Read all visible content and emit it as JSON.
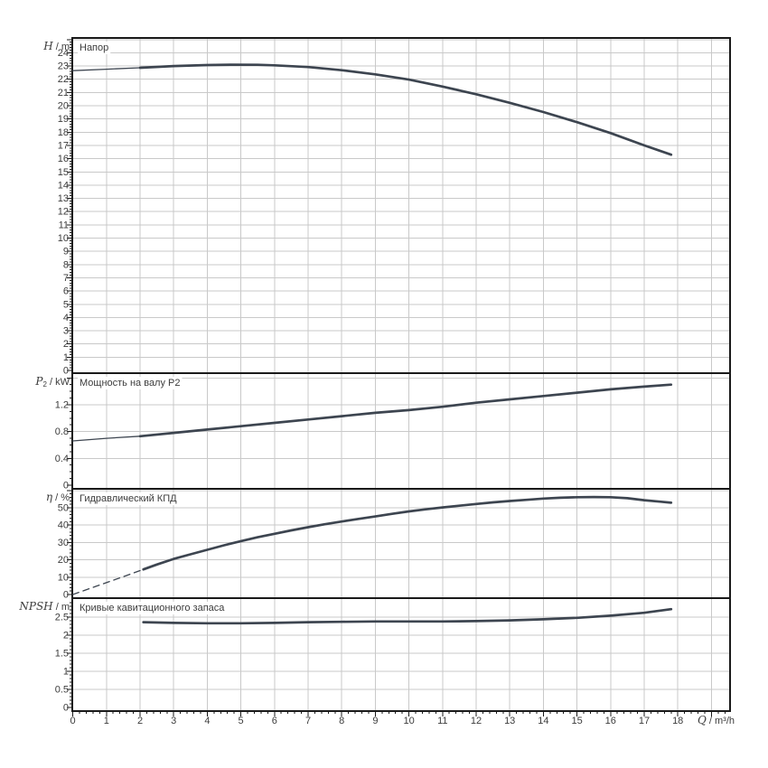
{
  "colors": {
    "curve": "#3d4550",
    "grid": "#c9c9c9",
    "axis": "#1a1a1a",
    "text": "#3c3c3c"
  },
  "chart_data": {
    "type": "line",
    "title": "",
    "x_axis": {
      "quantity": "Q",
      "unit": "m³/h",
      "axis_label": "Q / m³/h",
      "min": 0,
      "max": 19.55,
      "major_tick_step": 1,
      "minor_tick_step": 0.2,
      "labeled_ticks": [
        0,
        1,
        2,
        3,
        4,
        5,
        6,
        7,
        8,
        9,
        10,
        11,
        12,
        13,
        14,
        15,
        16,
        17,
        18
      ],
      "grid": true
    },
    "subplots": [
      {
        "id": "head",
        "title": "Напор",
        "y_quantity": "H",
        "y_quantity_sub": "",
        "y_unit": "m",
        "axis_label": "H / m",
        "y_min": 0,
        "y_max": 25.05,
        "major_tick_step": 1,
        "minor_tick_step": 0.2,
        "labeled_ticks": [
          0,
          1,
          2,
          3,
          4,
          5,
          6,
          7,
          8,
          9,
          10,
          11,
          12,
          13,
          14,
          15,
          16,
          17,
          18,
          19,
          20,
          21,
          22,
          23,
          24
        ],
        "grid": true,
        "curves": [
          {
            "name": "head-below-min-flow",
            "style": "thin",
            "points": [
              [
                0,
                22.65
              ],
              [
                1,
                22.76
              ],
              [
                2,
                22.87
              ]
            ]
          },
          {
            "name": "head",
            "style": "thick",
            "points": [
              [
                2,
                22.87
              ],
              [
                3,
                23.0
              ],
              [
                4,
                23.07
              ],
              [
                4.7,
                23.1
              ],
              [
                5.5,
                23.09
              ],
              [
                6,
                23.05
              ],
              [
                7,
                22.92
              ],
              [
                8,
                22.68
              ],
              [
                9,
                22.37
              ],
              [
                10,
                21.97
              ],
              [
                11,
                21.45
              ],
              [
                12,
                20.87
              ],
              [
                13,
                20.22
              ],
              [
                14,
                19.52
              ],
              [
                15,
                18.76
              ],
              [
                16,
                17.93
              ],
              [
                17,
                17.0
              ],
              [
                17.8,
                16.3
              ]
            ]
          }
        ]
      },
      {
        "id": "power",
        "title": "Мощность на валу P2",
        "y_quantity": "P",
        "y_quantity_sub": "2",
        "y_unit": "kW",
        "axis_label": "P2 / kW",
        "y_min": 0,
        "y_max": 1.67,
        "major_tick_step": 0.4,
        "minor_tick_step": 0.1,
        "labeled_ticks": [
          0,
          0.4,
          0.8,
          1.2
        ],
        "grid": true,
        "curves": [
          {
            "name": "power-below-min-flow",
            "style": "thin",
            "points": [
              [
                0,
                0.66
              ],
              [
                1,
                0.7
              ],
              [
                2,
                0.73
              ]
            ]
          },
          {
            "name": "power",
            "style": "thick",
            "points": [
              [
                2,
                0.73
              ],
              [
                3,
                0.78
              ],
              [
                4,
                0.83
              ],
              [
                5,
                0.88
              ],
              [
                6,
                0.93
              ],
              [
                7,
                0.98
              ],
              [
                8,
                1.03
              ],
              [
                9,
                1.08
              ],
              [
                10,
                1.12
              ],
              [
                11,
                1.17
              ],
              [
                12,
                1.23
              ],
              [
                13,
                1.28
              ],
              [
                14,
                1.33
              ],
              [
                15,
                1.38
              ],
              [
                16,
                1.43
              ],
              [
                17,
                1.47
              ],
              [
                17.8,
                1.5
              ]
            ]
          }
        ]
      },
      {
        "id": "efficiency",
        "title": "Гидравлический КПД",
        "y_quantity": "η",
        "y_quantity_sub": "",
        "y_unit": "%",
        "axis_label": "η / %",
        "y_min": 0,
        "y_max": 60.9,
        "major_tick_step": 10,
        "minor_tick_step": 2,
        "labeled_ticks": [
          0,
          10,
          20,
          30,
          40,
          50
        ],
        "grid": true,
        "curves": [
          {
            "name": "efficiency-below-min-flow",
            "style": "dashed",
            "points": [
              [
                0,
                0
              ],
              [
                0.7,
                4.8
              ],
              [
                1.4,
                9.6
              ],
              [
                2.1,
                14.5
              ]
            ]
          },
          {
            "name": "efficiency",
            "style": "thick",
            "points": [
              [
                2.1,
                14.5
              ],
              [
                2.5,
                17.3
              ],
              [
                3,
                20.5
              ],
              [
                3.5,
                23.2
              ],
              [
                4,
                25.8
              ],
              [
                4.5,
                28.4
              ],
              [
                5,
                30.8
              ],
              [
                5.5,
                33
              ],
              [
                6,
                35
              ],
              [
                6.5,
                37
              ],
              [
                7,
                38.8
              ],
              [
                7.5,
                40.5
              ],
              [
                8,
                42.1
              ],
              [
                8.5,
                43.6
              ],
              [
                9,
                45
              ],
              [
                9.5,
                46.5
              ],
              [
                10,
                47.9
              ],
              [
                10.5,
                49.1
              ],
              [
                11,
                50.2
              ],
              [
                11.5,
                51.2
              ],
              [
                12,
                52.2
              ],
              [
                12.5,
                53.1
              ],
              [
                13,
                53.9
              ],
              [
                13.5,
                54.6
              ],
              [
                14,
                55.3
              ],
              [
                14.5,
                55.8
              ],
              [
                15,
                56.1
              ],
              [
                15.5,
                56.2
              ],
              [
                16,
                56.1
              ],
              [
                16.5,
                55.5
              ],
              [
                17,
                54.4
              ],
              [
                17.5,
                53.5
              ],
              [
                17.8,
                52.9
              ]
            ]
          }
        ]
      },
      {
        "id": "npsh",
        "title": "Кривые кавитационного запаса",
        "y_quantity": "NPSH",
        "y_quantity_sub": "",
        "y_unit": "m",
        "axis_label": "NPSH / m",
        "y_min": 0,
        "y_max": 3.02,
        "major_tick_step": 0.5,
        "minor_tick_step": 0.1,
        "labeled_ticks": [
          0,
          0.5,
          1,
          1.5,
          2,
          2.5
        ],
        "grid": true,
        "curves": [
          {
            "name": "npsh",
            "style": "thick",
            "points": [
              [
                2.1,
                2.36
              ],
              [
                3,
                2.34
              ],
              [
                4,
                2.33
              ],
              [
                5,
                2.33
              ],
              [
                6,
                2.34
              ],
              [
                7,
                2.36
              ],
              [
                8,
                2.37
              ],
              [
                9,
                2.38
              ],
              [
                10,
                2.38
              ],
              [
                11,
                2.38
              ],
              [
                12,
                2.39
              ],
              [
                13,
                2.41
              ],
              [
                14,
                2.44
              ],
              [
                15,
                2.48
              ],
              [
                16,
                2.54
              ],
              [
                17,
                2.62
              ],
              [
                17.8,
                2.72
              ]
            ]
          }
        ]
      }
    ]
  }
}
